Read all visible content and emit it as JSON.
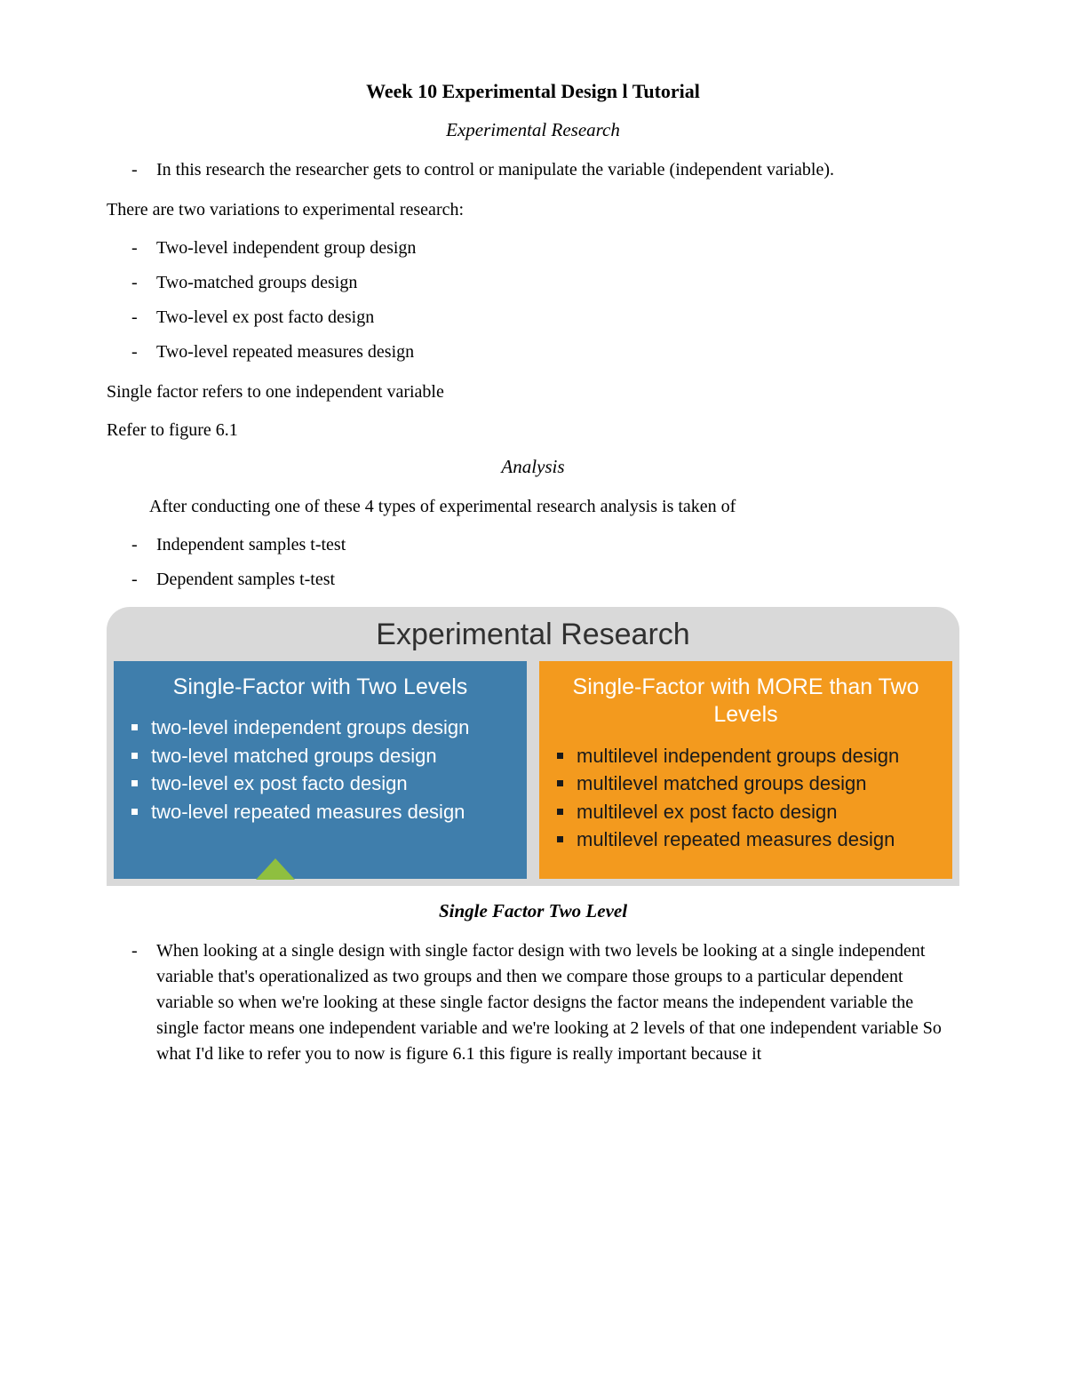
{
  "title": "Week 10 Experimental Design l Tutorial",
  "heading1": "Experimental Research",
  "intro_bullet": "In this research the researcher gets to control or manipulate the variable (independent variable).",
  "variations_intro": "There are two variations to experimental research:",
  "variations": [
    "Two-level independent group design",
    "Two-matched groups design",
    "Two-level ex post facto design",
    "Two-level repeated measures design"
  ],
  "single_factor_note": "Single factor refers to one independent variable",
  "refer_note": "Refer to figure 6.1",
  "heading2": "Analysis",
  "analysis_intro": "After conducting one of these 4 types of experimental research analysis is taken of",
  "analysis_items": [
    "Independent samples t-test",
    "Dependent samples t-test"
  ],
  "panel": {
    "header": "Experimental Research",
    "left": {
      "title": "Single-Factor with Two Levels",
      "bg_color": "#3f7eac",
      "text_color": "#ffffff",
      "bullet_color": "#ffffff",
      "items": [
        "two-level independent groups design",
        "two-level matched groups design",
        "two-level ex post facto design",
        "two-level repeated measures design"
      ]
    },
    "right": {
      "title": "Single-Factor with MORE than Two Levels",
      "bg_color": "#f39a1e",
      "text_color": "#1a1a1a",
      "bullet_color": "#1a1a1a",
      "items": [
        "multilevel independent groups design",
        "multilevel matched groups design",
        "multilevel ex post facto design",
        "multilevel repeated measures design"
      ]
    },
    "header_bg": "#d9d9d9",
    "triangle_color": "#8fbf3f",
    "header_fontsize": 34,
    "col_title_fontsize": 25,
    "item_fontsize": 22,
    "border_radius": 26
  },
  "heading3": "Single Factor Two Level",
  "sftl_bullet": "When looking at a single design with single factor design with two levels be looking at a single independent variable that's operationalized as two groups and then we compare those groups to a particular dependent variable so when we're looking at these single factor designs the factor means the independent variable the single factor means one independent variable and we're looking at 2 levels of that one independent variable So what I'd like to refer you to now is figure 6.1 this figure is really important because it",
  "style": {
    "page_bg": "#ffffff",
    "body_font": "Georgia",
    "body_fontsize": 20,
    "title_fontsize": 22,
    "heading_fontsize": 21,
    "text_color": "#000000"
  }
}
